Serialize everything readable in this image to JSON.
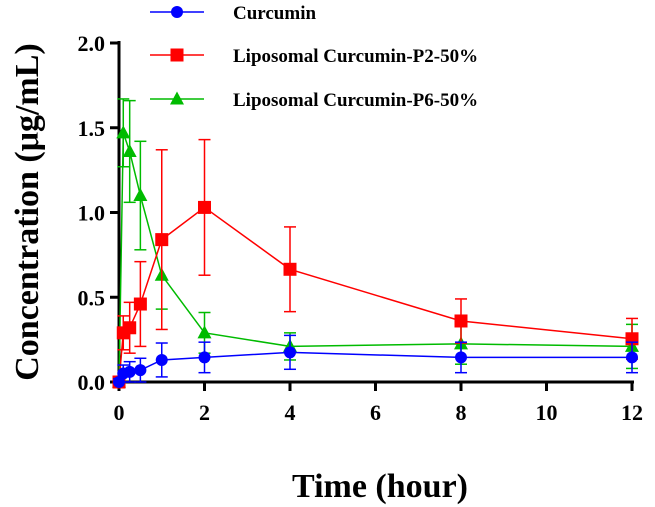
{
  "chart_data": {
    "type": "line",
    "xlabel": "Time (hour)",
    "ylabel": "Concentration (μg/mL)",
    "xlim": [
      0,
      12
    ],
    "ylim": [
      0,
      2.0
    ],
    "x_ticks": [
      0,
      2,
      4,
      6,
      8,
      10,
      12
    ],
    "x_tick_labels": [
      "0",
      "2",
      "4",
      "6",
      "8",
      "10",
      "12"
    ],
    "y_ticks": [
      0,
      0.5,
      1.0,
      1.5,
      2.0
    ],
    "y_tick_labels": [
      "0.0",
      "0.5",
      "1.0",
      "1.5",
      "2.0"
    ],
    "grid": false,
    "legend_position": "top",
    "series": [
      {
        "name": "Curcumin",
        "color": "#0000ff",
        "marker": "circle",
        "x": [
          0,
          0.1,
          0.25,
          0.5,
          1,
          2,
          4,
          8,
          12
        ],
        "y": [
          0.0,
          0.05,
          0.06,
          0.07,
          0.13,
          0.145,
          0.175,
          0.145,
          0.145
        ],
        "err": [
          0.02,
          0.05,
          0.06,
          0.07,
          0.1,
          0.09,
          0.1,
          0.09,
          0.09
        ]
      },
      {
        "name": "Liposomal Curcumin-P2-50%",
        "color": "#ff0000",
        "marker": "square",
        "x": [
          0,
          0.1,
          0.25,
          0.5,
          1,
          2,
          4,
          8,
          12
        ],
        "y": [
          0.0,
          0.29,
          0.32,
          0.46,
          0.84,
          1.03,
          0.665,
          0.36,
          0.255
        ],
        "err": [
          0.02,
          0.1,
          0.15,
          0.25,
          0.53,
          0.4,
          0.25,
          0.13,
          0.12
        ]
      },
      {
        "name": "Liposomal Curcumin-P6-50%",
        "color": "#00bb00",
        "marker": "triangle",
        "x": [
          0,
          0.1,
          0.25,
          0.5,
          1,
          2,
          4,
          8,
          12
        ],
        "y": [
          0.0,
          1.47,
          1.36,
          1.1,
          0.63,
          0.29,
          0.21,
          0.225,
          0.21
        ],
        "err": [
          0.02,
          0.2,
          0.3,
          0.32,
          0.2,
          0.12,
          0.08,
          0.12,
          0.13
        ]
      }
    ]
  }
}
